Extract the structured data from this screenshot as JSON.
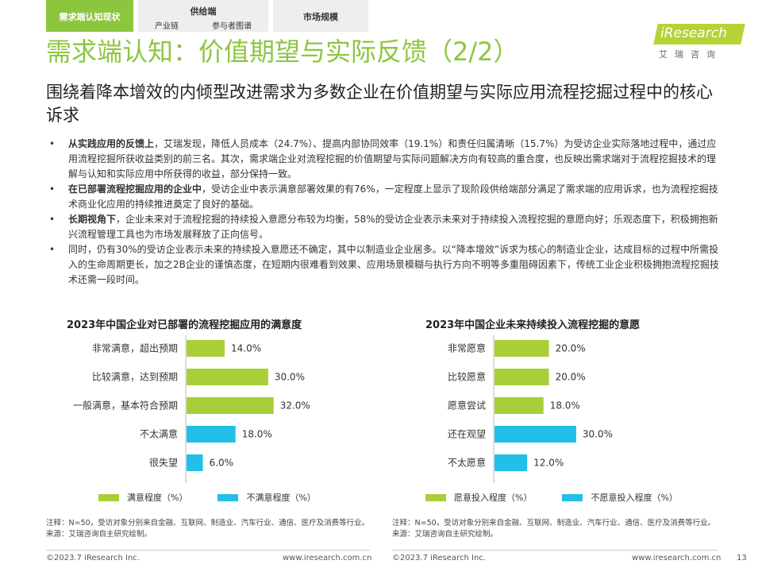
{
  "tabs": [
    {
      "label": "需求端认知现状",
      "subs": []
    },
    {
      "label": "供给端",
      "subs": [
        "产业链",
        "参与者图谱"
      ]
    },
    {
      "label": "市场规模",
      "subs": []
    }
  ],
  "title": "需求端认知：价值期望与实际反馈（2/2）",
  "logo": {
    "text": "iResearch",
    "cn": "艾瑞咨询"
  },
  "subtitle": "围绕着降本增效的内倾型改进需求为多数企业在价值期望与实际应用流程挖掘过程中的核心诉求",
  "bullets": [
    {
      "bold": "从实践应用的反馈上",
      "text": "，艾瑞发现，降低人员成本（24.7%）、提高内部协同效率（19.1%）和责任归属清晰（15.7%）为受访企业实际落地过程中，通过应用流程挖掘所获收益类别的前三名。其次，需求端企业对流程挖掘的价值期望与实际问题解决方向有较高的重合度，也反映出需求端对于流程挖掘技术的理解与认知和实际应用中所获得的收益，部分保持一致。"
    },
    {
      "bold": "在已部署流程挖掘应用的企业中",
      "text": "，受访企业中表示满意部署效果的有76%，一定程度上显示了现阶段供给端部分满足了需求端的应用诉求，也为流程挖掘技术商业化应用的持续推进奠定了良好的基础。"
    },
    {
      "bold": "长期视角下",
      "text": "，企业未来对于流程挖掘的持续投入意愿分布较为均衡，58%的受访企业表示未来对于持续投入流程挖掘的意愿向好；乐观态度下，积极拥抱新兴流程管理工具也为市场发展释放了正向信号。"
    },
    {
      "bold": "",
      "text": "同时，仍有30%的受访企业表示未来的持续投入意愿还不确定，其中以制造业企业居多。以“降本增效”诉求为核心的制造业企业，达成目标的过程中所需投入的生命周期更长，加之2B企业的谨慎态度，在短期内很难看到效果、应用场景模糊与执行方向不明等多重阻碍因素下，传统工业企业积极拥抱流程挖掘技术还需一段时间。"
    }
  ],
  "colors": {
    "green": "#a8cf38",
    "cyan": "#22bfe8",
    "title_green": "#8cc63f"
  },
  "chart_data": [
    {
      "type": "bar",
      "orientation": "horizontal",
      "title": "2023年中国企业对已部署的流程挖掘应用的满意度",
      "categories": [
        "非常满意，超出预期",
        "比较满意，达到预期",
        "一般满意，基本符合预期",
        "不太满意",
        "很失望"
      ],
      "values": [
        14.0,
        30.0,
        32.0,
        18.0,
        6.0
      ],
      "value_labels": [
        "14.0%",
        "30.0%",
        "32.0%",
        "18.0%",
        "6.0%"
      ],
      "groups": [
        "满意程度（%）",
        "满意程度（%）",
        "满意程度（%）",
        "不满意程度（%）",
        "不满意程度（%）"
      ],
      "legend": [
        "满意程度（%）",
        "不满意程度（%）"
      ],
      "xlim": [
        0,
        35
      ],
      "grid": false,
      "legend_position": "bottom"
    },
    {
      "type": "bar",
      "orientation": "horizontal",
      "title": "2023年中国企业未来持续投入流程挖掘的意愿",
      "categories": [
        "非常愿意",
        "比较愿意",
        "愿意尝试",
        "还在观望",
        "不太愿意"
      ],
      "values": [
        20.0,
        20.0,
        18.0,
        30.0,
        12.0
      ],
      "value_labels": [
        "20.0%",
        "20.0%",
        "18.0%",
        "30.0%",
        "12.0%"
      ],
      "groups": [
        "愿意投入程度（%）",
        "愿意投入程度（%）",
        "愿意投入程度（%）",
        "不愿意投入程度（%）",
        "不愿意投入程度（%）"
      ],
      "legend": [
        "愿意投入程度（%）",
        "不愿意投入程度（%）"
      ],
      "xlim": [
        0,
        35
      ],
      "grid": false,
      "legend_position": "bottom"
    }
  ],
  "notes": [
    {
      "line1": "注释：N=50，受访对象分别来自金融、互联网、制造业、汽车行业、通信、医疗及消费等行业。",
      "line2": "来源：艾瑞咨询自主研究绘制。"
    },
    {
      "line1": "注释：N=50，受访对象分别来自金融、互联网、制造业、汽车行业、通信、医疗及消费等行业。",
      "line2": "来源：艾瑞咨询自主研究绘制。"
    }
  ],
  "footer": {
    "copyright": "©2023.7 iResearch Inc.",
    "url": "www.iresearch.com.cn",
    "page": "13"
  }
}
